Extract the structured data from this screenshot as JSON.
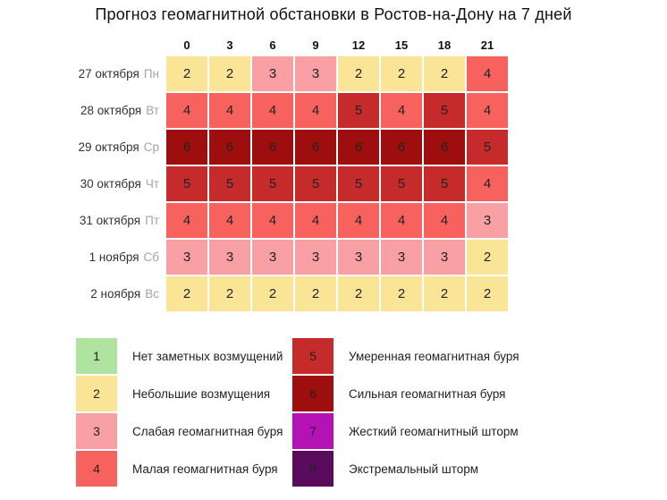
{
  "chart_data": {
    "type": "heatmap",
    "title": "Прогноз геомагнитной обстановки в Ростов-на-Дону на 7 дней",
    "hours": [
      "0",
      "3",
      "6",
      "9",
      "12",
      "15",
      "18",
      "21"
    ],
    "rows": [
      {
        "date": "27 октября",
        "day": "Пн",
        "values": [
          2,
          2,
          3,
          3,
          2,
          2,
          2,
          4
        ]
      },
      {
        "date": "28 октября",
        "day": "Вт",
        "values": [
          4,
          4,
          4,
          4,
          5,
          4,
          5,
          4
        ]
      },
      {
        "date": "29 октября",
        "day": "Ср",
        "values": [
          6,
          6,
          6,
          6,
          6,
          6,
          6,
          5
        ]
      },
      {
        "date": "30 октября",
        "day": "Чт",
        "values": [
          5,
          5,
          5,
          5,
          5,
          5,
          5,
          4
        ]
      },
      {
        "date": "31 октября",
        "day": "Пт",
        "values": [
          4,
          4,
          4,
          4,
          4,
          4,
          4,
          3
        ]
      },
      {
        "date": "1 ноября",
        "day": "Сб",
        "values": [
          3,
          3,
          3,
          3,
          3,
          3,
          3,
          2
        ]
      },
      {
        "date": "2 ноября",
        "day": "Вс",
        "values": [
          2,
          2,
          2,
          2,
          2,
          2,
          2,
          2
        ]
      }
    ],
    "legend": [
      {
        "value": 1,
        "label": "Нет заметных возмущений"
      },
      {
        "value": 2,
        "label": "Небольшие возмущения"
      },
      {
        "value": 3,
        "label": "Слабая геомагнитная буря"
      },
      {
        "value": 4,
        "label": "Малая геомагнитная буря"
      },
      {
        "value": 5,
        "label": "Умеренная геомагнитная буря"
      },
      {
        "value": 6,
        "label": "Сильная геомагнитная буря"
      },
      {
        "value": 7,
        "label": "Жесткий геомагнитный шторм"
      },
      {
        "value": 8,
        "label": "Экстремальный шторм"
      }
    ],
    "scale_colors": {
      "1": "#AFE3A0",
      "2": "#FAE596",
      "3": "#F9A0A4",
      "4": "#F7625E",
      "5": "#C62B2B",
      "6": "#9E0E0E",
      "7": "#B412B4",
      "8": "#5B0B5E"
    }
  }
}
